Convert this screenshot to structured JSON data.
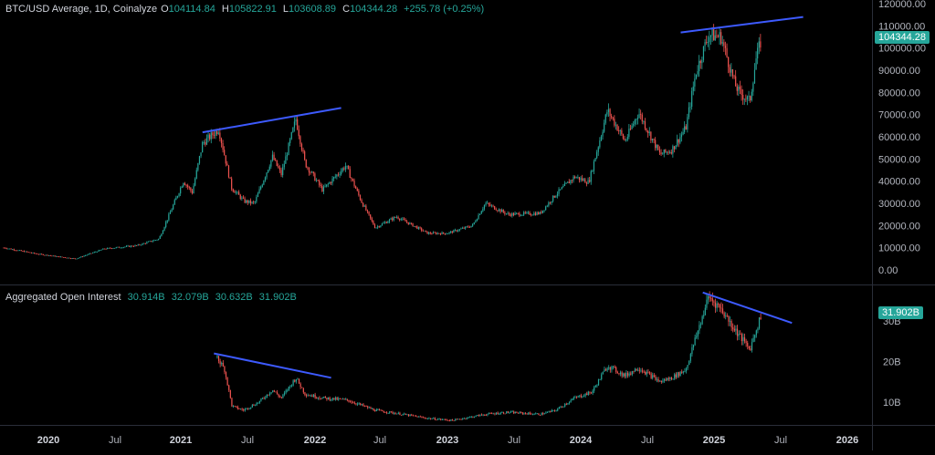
{
  "price_pane": {
    "symbol": "BTC/USD Average, 1D, Coinalyze",
    "o_key": "O",
    "o": "104114.84",
    "h_key": "H",
    "h": "105822.91",
    "l_key": "L",
    "l": "103608.89",
    "c_key": "C",
    "c": "104344.28",
    "change": "+255.78 (+0.25%)",
    "last_label": "104344.28",
    "badge_color": "#26a69a"
  },
  "oi_pane": {
    "title": "Aggregated Open Interest",
    "values": [
      "30.914B",
      "32.079B",
      "30.632B",
      "31.902B"
    ],
    "last_label": "31.902B",
    "badge_color": "#26a69a"
  },
  "colors": {
    "up": "#26a69a",
    "down": "#ef5350",
    "trendline": "#3d5afe",
    "grid": "#2a2e39"
  },
  "chart_data": [
    {
      "type": "line",
      "title": "BTC/USD Average, 1D, Coinalyze",
      "y_axis_ticks": [
        "120000.00",
        "110000.00",
        "100000.00",
        "90000.00",
        "80000.00",
        "70000.00",
        "60000.00",
        "50000.00",
        "40000.00",
        "30000.00",
        "20000.00",
        "10000.00",
        "0.00"
      ],
      "ylim": [
        0,
        120000
      ],
      "x_ticks": [
        "2020",
        "Jul",
        "2021",
        "Jul",
        "2022",
        "Jul",
        "2023",
        "Jul",
        "2024",
        "Jul",
        "2025",
        "Jul",
        "2026"
      ],
      "x_tick_dates": [
        "2020-01-01",
        "2020-07-01",
        "2021-01-01",
        "2021-07-01",
        "2022-01-01",
        "2022-07-01",
        "2023-01-01",
        "2023-07-01",
        "2024-01-01",
        "2024-07-01",
        "2025-01-01",
        "2025-07-01",
        "2026-01-01"
      ],
      "series": [
        {
          "x": [
            "2019-09-01",
            "2019-12-01",
            "2020-03-15",
            "2020-06-01",
            "2020-09-01",
            "2020-11-01",
            "2021-01-08",
            "2021-02-01",
            "2021-03-01",
            "2021-04-14",
            "2021-05-19",
            "2021-06-22",
            "2021-07-20",
            "2021-09-07",
            "2021-10-01",
            "2021-11-10",
            "2021-12-05",
            "2022-01-22",
            "2022-03-28",
            "2022-05-10",
            "2022-06-18",
            "2022-08-15",
            "2022-11-09",
            "2022-12-31",
            "2023-03-10",
            "2023-04-14",
            "2023-06-15",
            "2023-09-11",
            "2023-10-24",
            "2023-12-15",
            "2024-01-23",
            "2024-03-14",
            "2024-05-01",
            "2024-06-07",
            "2024-08-05",
            "2024-09-06",
            "2024-10-15",
            "2024-11-12",
            "2024-12-17",
            "2025-01-20",
            "2025-02-26",
            "2025-03-10",
            "2025-04-08",
            "2025-04-25",
            "2025-05-10"
          ],
          "y": [
            10000,
            7200,
            5000,
            9500,
            11000,
            14000,
            40000,
            35000,
            57000,
            63500,
            37000,
            31000,
            30000,
            51000,
            43000,
            68000,
            48000,
            36000,
            47000,
            31000,
            19000,
            24000,
            16500,
            16500,
            20000,
            30000,
            25000,
            25500,
            34000,
            42000,
            39500,
            72000,
            58000,
            71000,
            52000,
            54000,
            64000,
            89000,
            106000,
            105000,
            84000,
            80000,
            76000,
            95000,
            104344
          ]
        }
      ],
      "trendlines": [
        {
          "x": [
            "2021-03-01",
            "2022-03-15"
          ],
          "y": [
            62000,
            73000
          ]
        },
        {
          "x": [
            "2024-10-01",
            "2025-09-01"
          ],
          "y": [
            107000,
            114000
          ]
        }
      ]
    },
    {
      "type": "line",
      "title": "Aggregated Open Interest",
      "y_axis_ticks": [
        "30B",
        "20B",
        "10B"
      ],
      "ylim": [
        3,
        38
      ],
      "series": [
        {
          "x": [
            "2021-04-10",
            "2021-04-30",
            "2021-05-20",
            "2021-06-20",
            "2021-08-01",
            "2021-09-07",
            "2021-10-01",
            "2021-11-10",
            "2021-12-05",
            "2022-01-22",
            "2022-04-01",
            "2022-06-18",
            "2022-09-01",
            "2022-11-09",
            "2023-01-15",
            "2023-04-14",
            "2023-06-15",
            "2023-09-11",
            "2023-10-24",
            "2023-12-15",
            "2024-02-01",
            "2024-03-14",
            "2024-05-01",
            "2024-06-07",
            "2024-08-05",
            "2024-09-06",
            "2024-10-15",
            "2024-11-12",
            "2024-12-17",
            "2025-01-20",
            "2025-02-26",
            "2025-04-08",
            "2025-05-10"
          ],
          "y": [
            21,
            18,
            9,
            8,
            10,
            13,
            11,
            16,
            12,
            11,
            10.5,
            8,
            7,
            6,
            5.5,
            7,
            7.5,
            7,
            8,
            11,
            12.5,
            19,
            16.5,
            18.5,
            15,
            16,
            18,
            26,
            36,
            33,
            28,
            23,
            31.902
          ]
        }
      ],
      "trendlines": [
        {
          "x": [
            "2021-04-01",
            "2022-02-15"
          ],
          "y": [
            22,
            16
          ]
        },
        {
          "x": [
            "2024-12-01",
            "2025-08-01"
          ],
          "y": [
            37,
            29.5
          ]
        }
      ]
    }
  ]
}
